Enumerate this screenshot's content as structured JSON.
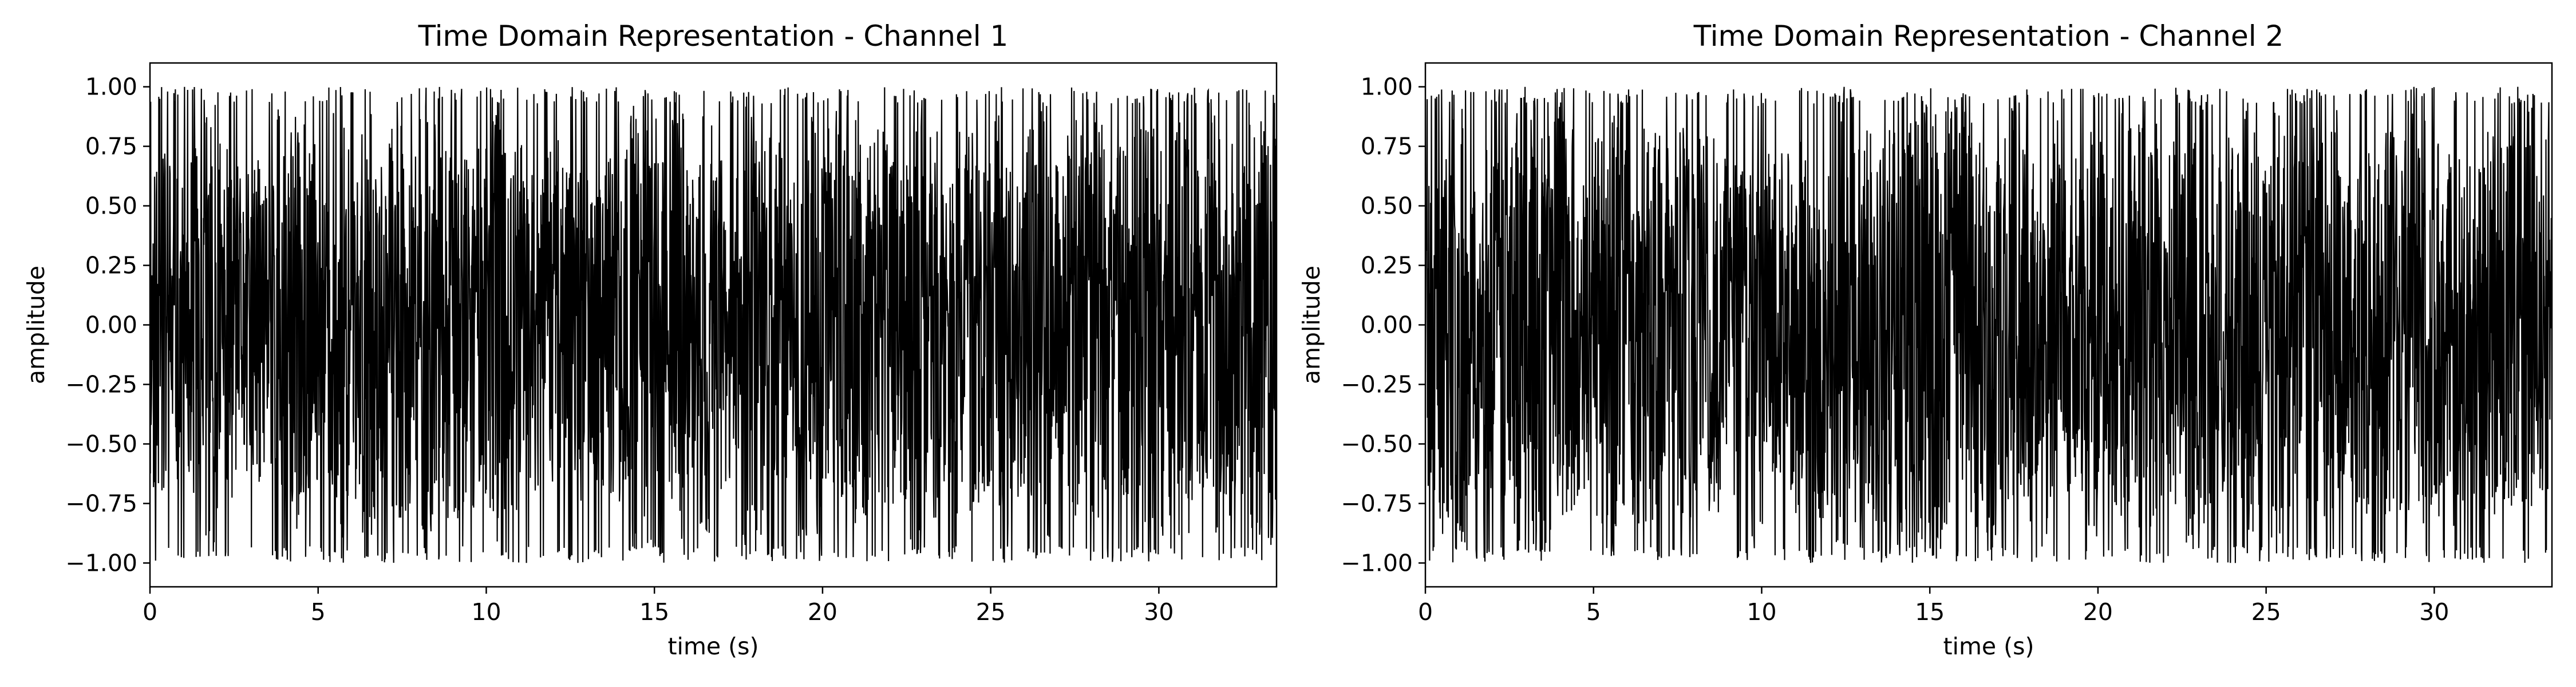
{
  "chart_data": [
    {
      "type": "line",
      "title": "Time Domain Representation - Channel 1",
      "xlabel": "time (s)",
      "ylabel": "amplitude",
      "xlim": [
        0,
        33.5
      ],
      "ylim": [
        -1.1,
        1.1
      ],
      "xticks": [
        0,
        5,
        10,
        15,
        20,
        25,
        30
      ],
      "xtick_labels": [
        "0",
        "5",
        "10",
        "15",
        "20",
        "25",
        "30"
      ],
      "yticks": [
        1.0,
        0.75,
        0.5,
        0.25,
        0.0,
        -0.25,
        -0.5,
        -0.75,
        -1.0
      ],
      "ytick_labels": [
        "1.00",
        "0.75",
        "0.50",
        "0.25",
        "0.00",
        "−0.25",
        "−0.50",
        "−0.75",
        "−1.00"
      ],
      "grid": false,
      "series_color": "#000000",
      "signal": {
        "t_start": 0,
        "t_end": 33.5,
        "sample_count": 3200,
        "amplitude_min": -1.0,
        "amplitude_max": 1.0,
        "description": "dense oscillating audio waveform filling nearly the full ±1 range",
        "seed": 11
      }
    },
    {
      "type": "line",
      "title": "Time Domain Representation - Channel 2",
      "xlabel": "time (s)",
      "ylabel": "amplitude",
      "xlim": [
        0,
        33.5
      ],
      "ylim": [
        -1.1,
        1.1
      ],
      "xticks": [
        0,
        5,
        10,
        15,
        20,
        25,
        30
      ],
      "xtick_labels": [
        "0",
        "5",
        "10",
        "15",
        "20",
        "25",
        "30"
      ],
      "yticks": [
        1.0,
        0.75,
        0.5,
        0.25,
        0.0,
        -0.25,
        -0.5,
        -0.75,
        -1.0
      ],
      "ytick_labels": [
        "1.00",
        "0.75",
        "0.50",
        "0.25",
        "0.00",
        "−0.25",
        "−0.50",
        "−0.75",
        "−1.00"
      ],
      "grid": false,
      "series_color": "#000000",
      "signal": {
        "t_start": 0,
        "t_end": 33.5,
        "sample_count": 3200,
        "amplitude_min": -1.0,
        "amplitude_max": 1.0,
        "description": "dense oscillating audio waveform filling nearly the full ±1 range",
        "seed": 23
      }
    }
  ]
}
